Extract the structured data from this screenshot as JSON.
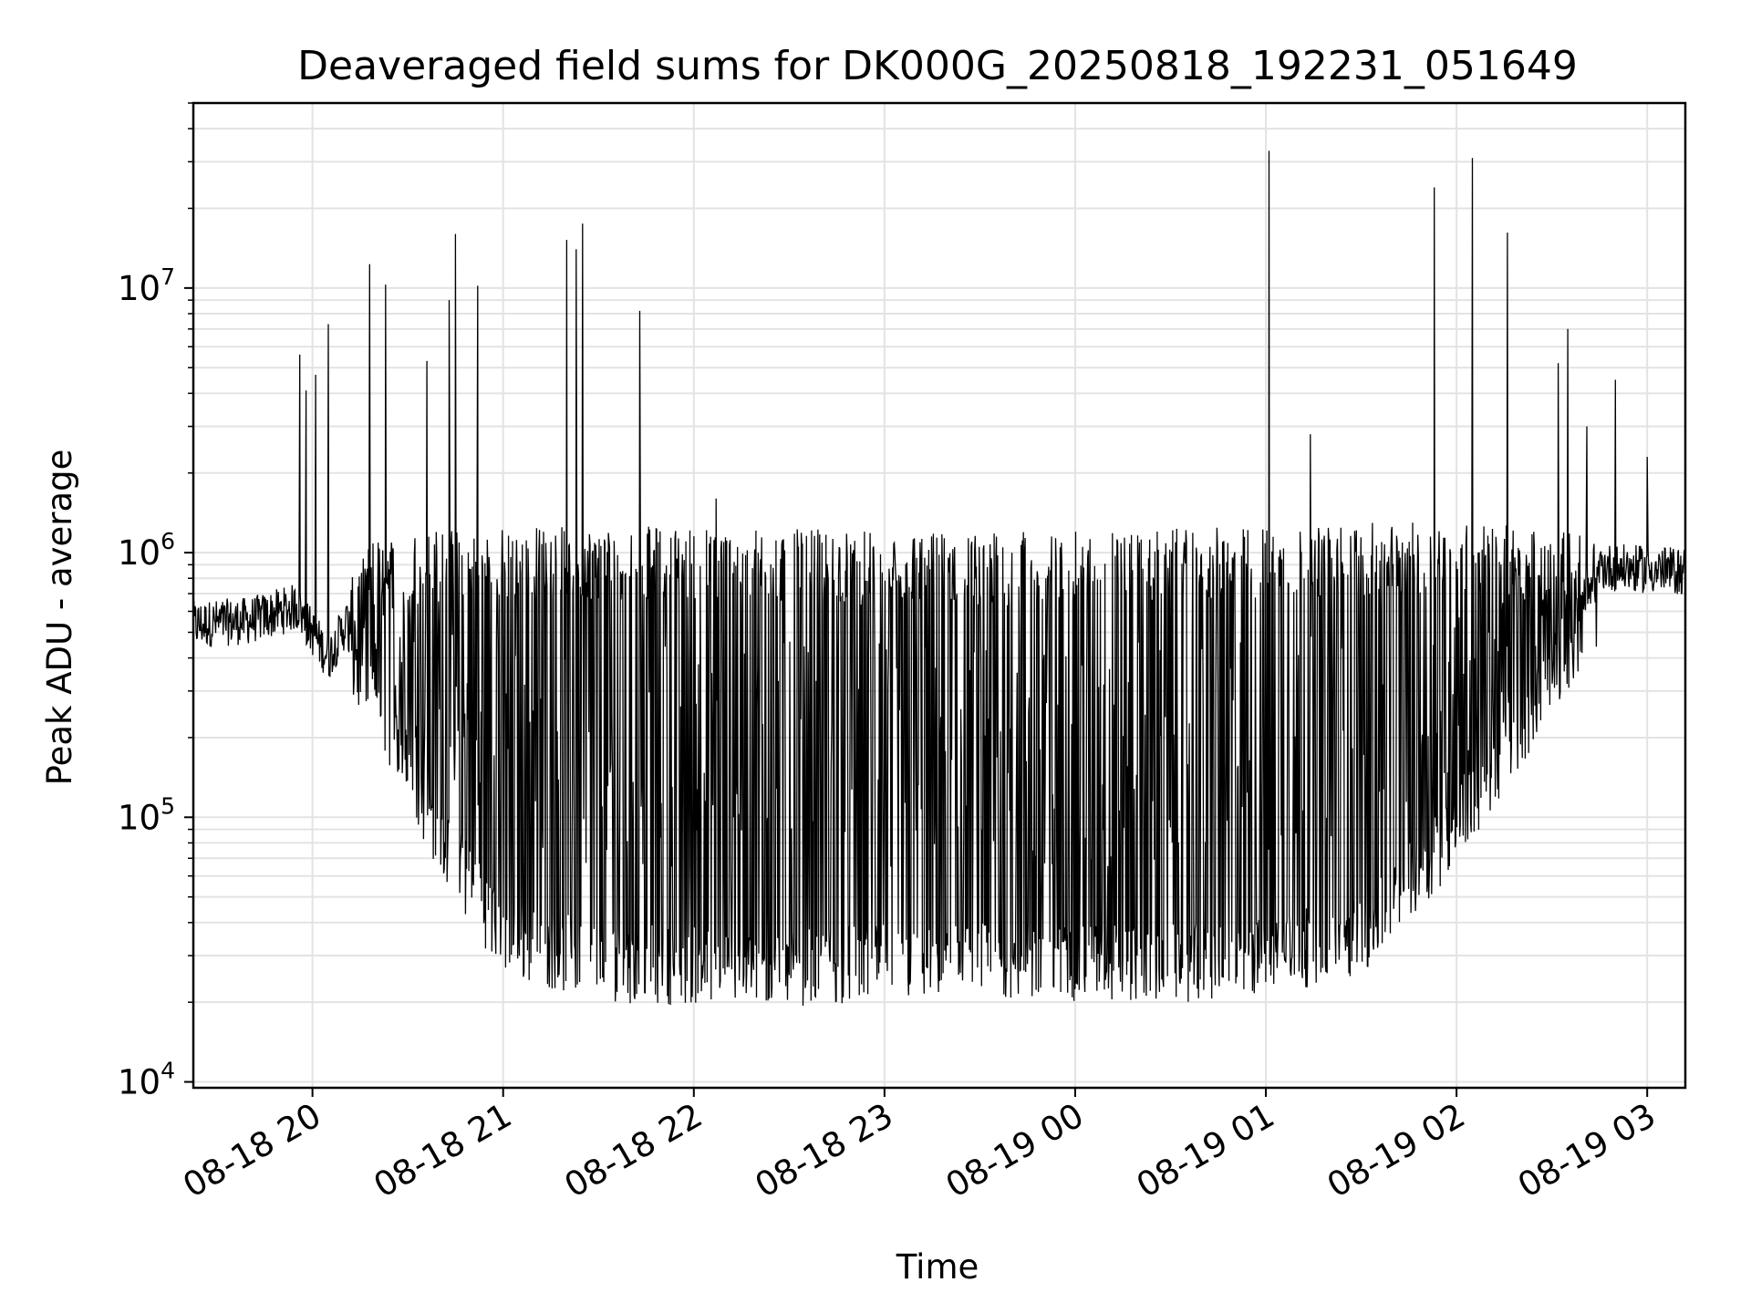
{
  "chart_data": {
    "type": "line",
    "title": "Deaveraged field sums for DK000G_20250818_192231_051649",
    "xlabel": "Time",
    "ylabel": "Peak ADU - average",
    "yscale": "log",
    "ylim": [
      9500,
      50000000
    ],
    "xlim": [
      "2025-08-18 19:22:31",
      "2025-08-19 03:12:00"
    ],
    "grid": true,
    "line_color": "#000000",
    "x_ticks": [
      {
        "value": "2025-08-18 20:00",
        "label": "08-18 20"
      },
      {
        "value": "2025-08-18 21:00",
        "label": "08-18 21"
      },
      {
        "value": "2025-08-18 22:00",
        "label": "08-18 22"
      },
      {
        "value": "2025-08-18 23:00",
        "label": "08-18 23"
      },
      {
        "value": "2025-08-19 00:00",
        "label": "08-19 00"
      },
      {
        "value": "2025-08-19 01:00",
        "label": "08-19 01"
      },
      {
        "value": "2025-08-19 02:00",
        "label": "08-19 02"
      },
      {
        "value": "2025-08-19 03:00",
        "label": "08-19 03"
      }
    ],
    "y_ticks": [
      {
        "value": 10000,
        "base": "10",
        "exp": "4"
      },
      {
        "value": 100000,
        "base": "10",
        "exp": "5"
      },
      {
        "value": 1000000,
        "base": "10",
        "exp": "6"
      },
      {
        "value": 10000000,
        "base": "10",
        "exp": "7"
      }
    ],
    "spikes": [
      {
        "x": "2025-08-18 19:56:00",
        "y": 5600000
      },
      {
        "x": "2025-08-18 19:58:00",
        "y": 4100000
      },
      {
        "x": "2025-08-18 20:01:00",
        "y": 4700000
      },
      {
        "x": "2025-08-18 20:05:00",
        "y": 7300000
      },
      {
        "x": "2025-08-18 20:18:00",
        "y": 12300000
      },
      {
        "x": "2025-08-18 20:23:00",
        "y": 10300000
      },
      {
        "x": "2025-08-18 20:36:00",
        "y": 5300000
      },
      {
        "x": "2025-08-18 20:43:00",
        "y": 9000000
      },
      {
        "x": "2025-08-18 20:45:00",
        "y": 16000000
      },
      {
        "x": "2025-08-18 20:52:00",
        "y": 10200000
      },
      {
        "x": "2025-08-18 21:20:00",
        "y": 15200000
      },
      {
        "x": "2025-08-18 21:23:00",
        "y": 14000000
      },
      {
        "x": "2025-08-18 21:25:00",
        "y": 17500000
      },
      {
        "x": "2025-08-18 21:43:00",
        "y": 8200000
      },
      {
        "x": "2025-08-18 22:07:00",
        "y": 1600000
      },
      {
        "x": "2025-08-19 01:01:00",
        "y": 33000000
      },
      {
        "x": "2025-08-19 01:14:00",
        "y": 2800000
      },
      {
        "x": "2025-08-19 01:53:00",
        "y": 24000000
      },
      {
        "x": "2025-08-19 02:05:00",
        "y": 31000000
      },
      {
        "x": "2025-08-19 02:16:00",
        "y": 16200000
      },
      {
        "x": "2025-08-19 02:32:00",
        "y": 5200000
      },
      {
        "x": "2025-08-19 02:35:00",
        "y": 7000000
      },
      {
        "x": "2025-08-19 02:41:00",
        "y": 3000000
      },
      {
        "x": "2025-08-19 02:50:00",
        "y": 4500000
      },
      {
        "x": "2025-08-19 03:00:00",
        "y": 2300000
      }
    ],
    "series": [
      {
        "values_approx": [
          {
            "x": "2025-08-18 19:22:31",
            "y": 600000
          },
          {
            "x": "2025-08-18 19:40:00",
            "y": 620000
          },
          {
            "x": "2025-08-18 19:55:00",
            "y": 700000
          },
          {
            "x": "2025-08-18 20:05:00",
            "y": 450000
          },
          {
            "x": "2025-08-18 20:20:00",
            "y": 1000000
          },
          {
            "x": "2025-08-18 21:00:00",
            "y": 1050000
          },
          {
            "x": "2025-08-18 22:00:00",
            "y": 1050000
          },
          {
            "x": "2025-08-18 23:00:00",
            "y": 1000000
          },
          {
            "x": "2025-08-19 00:00:00",
            "y": 1000000
          },
          {
            "x": "2025-08-19 01:00:00",
            "y": 1050000
          },
          {
            "x": "2025-08-19 02:00:00",
            "y": 1100000
          },
          {
            "x": "2025-08-19 02:40:00",
            "y": 1000000
          },
          {
            "x": "2025-08-19 03:12:00",
            "y": 950000
          }
        ],
        "minima_approx": [
          {
            "x": "2025-08-18 20:05:00",
            "y": 350000
          },
          {
            "x": "2025-08-18 20:20:00",
            "y": 200000
          },
          {
            "x": "2025-08-18 20:40:00",
            "y": 60000
          },
          {
            "x": "2025-08-18 21:00:00",
            "y": 25000
          },
          {
            "x": "2025-08-18 21:30:00",
            "y": 20000
          },
          {
            "x": "2025-08-18 22:20:00",
            "y": 19000
          },
          {
            "x": "2025-08-18 23:00:00",
            "y": 20000
          },
          {
            "x": "2025-08-19 00:00:00",
            "y": 20000
          },
          {
            "x": "2025-08-19 00:50:00",
            "y": 20000
          },
          {
            "x": "2025-08-19 01:30:00",
            "y": 25000
          },
          {
            "x": "2025-08-19 01:55:00",
            "y": 55000
          },
          {
            "x": "2025-08-19 02:15:00",
            "y": 120000
          },
          {
            "x": "2025-08-19 02:30:00",
            "y": 250000
          },
          {
            "x": "2025-08-19 02:45:00",
            "y": 450000
          },
          {
            "x": "2025-08-19 03:12:00",
            "y": 750000
          }
        ]
      }
    ]
  }
}
